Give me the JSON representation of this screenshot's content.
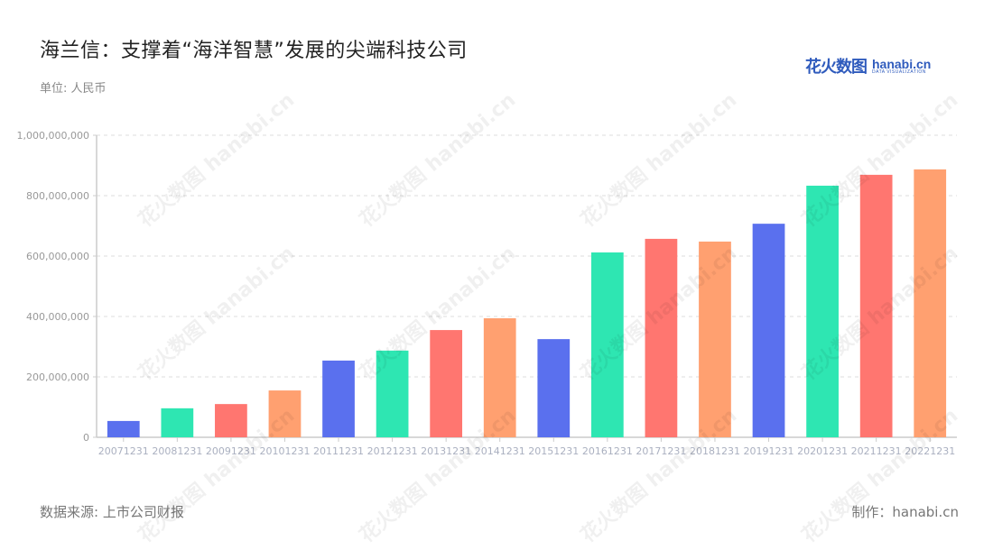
{
  "header": {
    "title": "海兰信：支撑着“海洋智慧”发展的尖端科技公司",
    "unit": "单位: 人民币"
  },
  "logo": {
    "cn": "花火数图",
    "en": "hanabi.cn",
    "tagline": "DATA VISUALIZATION"
  },
  "footer": {
    "source": "数据来源: 上市公司财报",
    "maker": "制作：hanabi.cn"
  },
  "watermark": "花火数图 hanabi.cn",
  "chart_data": {
    "type": "bar",
    "title": "海兰信：支撑着“海洋智慧”发展的尖端科技公司",
    "subtitle": "单位: 人民币",
    "xlabel": "",
    "ylabel": "",
    "ylim": [
      0,
      1000000000
    ],
    "yticks": [
      0,
      200000000,
      400000000,
      600000000,
      800000000,
      1000000000
    ],
    "ytick_labels": [
      "0",
      "200,000,000",
      "400,000,000",
      "600,000,000",
      "800,000,000",
      "1,000,000,000"
    ],
    "grid": true,
    "legend": null,
    "categories": [
      "20071231",
      "20081231",
      "20091231",
      "20101231",
      "20111231",
      "20121231",
      "20131231",
      "20141231",
      "20151231",
      "20161231",
      "20171231",
      "20181231",
      "20191231",
      "20201231",
      "20211231",
      "20221231"
    ],
    "values": [
      54000000,
      96000000,
      110000000,
      155000000,
      254000000,
      287000000,
      355000000,
      394000000,
      325000000,
      612000000,
      657000000,
      648000000,
      707000000,
      833000000,
      869000000,
      887000000
    ],
    "colors": [
      "#5a70ee",
      "#2ee6b2",
      "#ff7670",
      "#ffa070",
      "#5a70ee",
      "#2ee6b2",
      "#ff7670",
      "#ffa070",
      "#5a70ee",
      "#2ee6b2",
      "#ff7670",
      "#ffa070",
      "#5a70ee",
      "#2ee6b2",
      "#ff7670",
      "#ffa070"
    ]
  }
}
